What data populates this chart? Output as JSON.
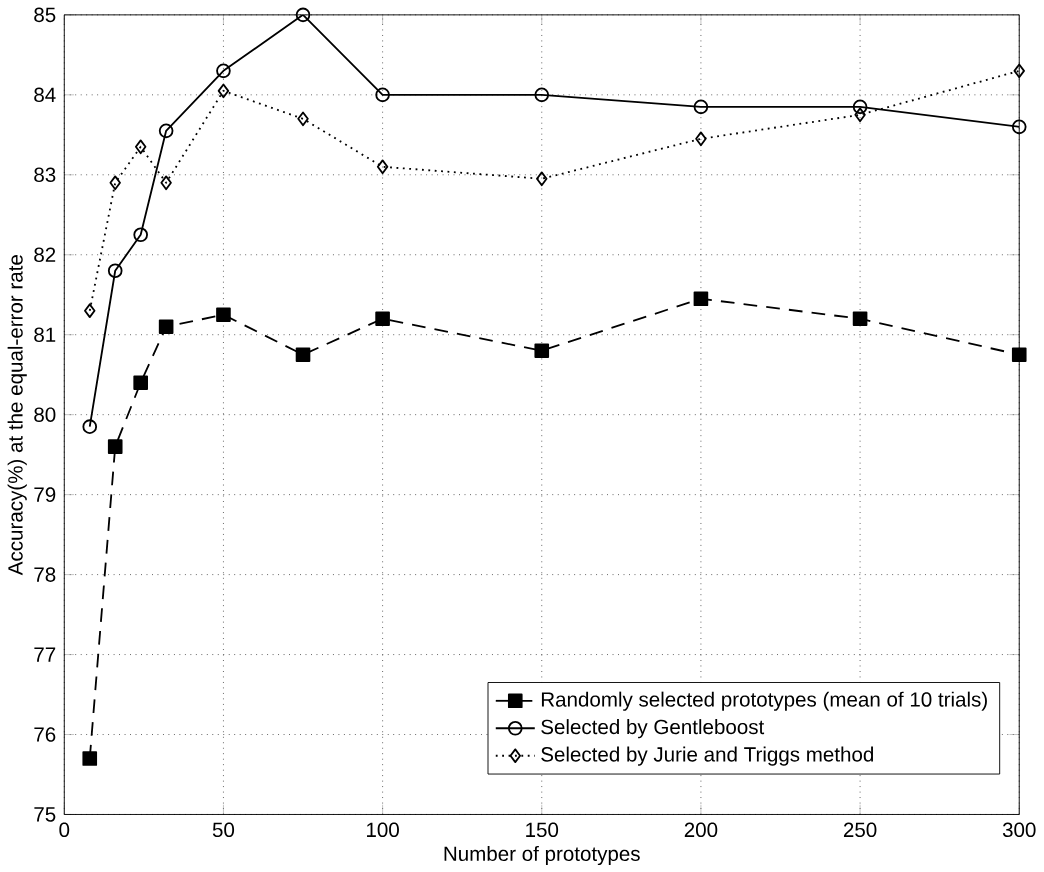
{
  "chart_data": {
    "type": "line",
    "xlabel": "Number of prototypes",
    "ylabel": "Accuracy(%) at the equal-error rate",
    "x": [
      8,
      16,
      24,
      32,
      50,
      75,
      100,
      150,
      200,
      250,
      300
    ],
    "xlim": [
      0,
      300
    ],
    "xticks": [
      0,
      50,
      100,
      150,
      200,
      250,
      300
    ],
    "ylim": [
      75,
      85
    ],
    "yticks": [
      75,
      76,
      77,
      78,
      79,
      80,
      81,
      82,
      83,
      84,
      85
    ],
    "grid": true,
    "legend": "bottom right",
    "series": [
      {
        "name": "Randomly selected prototypes (mean of 10 trials)",
        "color": "#000000",
        "marker": "square",
        "line_style": "dashed",
        "values": [
          75.7,
          79.6,
          80.4,
          81.1,
          81.25,
          80.75,
          81.2,
          80.8,
          81.45,
          81.2,
          80.75
        ]
      },
      {
        "name": "Selected by Gentleboost",
        "color": "#000000",
        "marker": "circle",
        "line_style": "solid",
        "values": [
          79.85,
          81.8,
          82.25,
          83.55,
          84.3,
          85.0,
          84.0,
          84.0,
          83.85,
          83.85,
          83.6
        ]
      },
      {
        "name": "Selected by Jurie and Triggs method",
        "color": "#000000",
        "marker": "diamond",
        "line_style": "dotted",
        "values": [
          81.3,
          82.9,
          83.35,
          82.9,
          84.05,
          83.7,
          83.1,
          82.95,
          83.45,
          83.75,
          84.3
        ]
      }
    ]
  }
}
